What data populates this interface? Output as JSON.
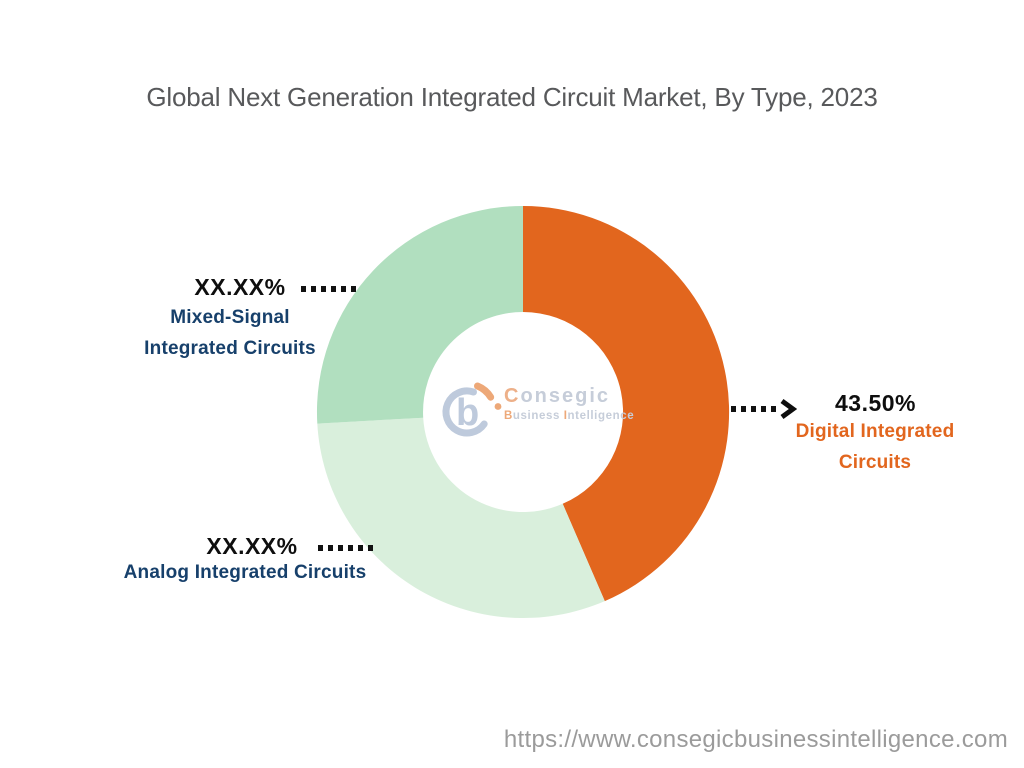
{
  "title": "Global Next Generation Integrated Circuit Market, By Type, 2023",
  "chart_data": {
    "type": "pie",
    "subtype": "donut",
    "title": "Global Next Generation Integrated Circuit Market, By Type, 2023",
    "start_angle": "top, clockwise",
    "hole_radius_ratio": 0.49,
    "legend": "none (callout labels with dotted leader lines)",
    "segments": [
      {
        "name": "Digital Integrated Circuits",
        "name_lines": [
          "Digital Integrated",
          "Circuits"
        ],
        "value": 43.5,
        "display": "43.50%",
        "color": "#E2661E",
        "label_color": "#E2661E"
      },
      {
        "name": "Analog Integrated Circuits",
        "name_lines": [
          "Analog Integrated Circuits"
        ],
        "value": 30.6,
        "display": "XX.XX%",
        "color": "#D9EFDC",
        "label_color": "#17406B"
      },
      {
        "name": "Mixed-Signal Integrated Circuits",
        "name_lines": [
          "Mixed-Signal",
          "Integrated Circuits"
        ],
        "value": 25.9,
        "display": "XX.XX%",
        "color": "#B1DFBF",
        "label_color": "#17406B"
      }
    ]
  },
  "logo": {
    "mark_letter": "b",
    "brand_initial": "C",
    "brand_rest": "onsegic",
    "tag_initial1": "B",
    "tag_rest1": "usiness ",
    "tag_initial2": "I",
    "tag_rest2": "ntelligence"
  },
  "footer": {
    "url": "https://www.consegicbusinessintelligence.com"
  },
  "colors": {
    "accent_orange": "#E2661E",
    "green_medium": "#B1DFBF",
    "green_light": "#D9EFDC",
    "label_navy": "#17406B",
    "title_gray": "#58595B",
    "url_gray": "#9B9B9B",
    "leader_dot_black": "#111111"
  }
}
